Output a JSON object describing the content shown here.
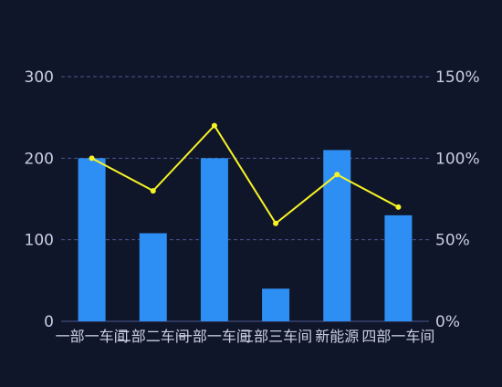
{
  "colors": {
    "background": "#101629",
    "bar": "#2d8ff3",
    "line": "#f7f425",
    "grid": "#4a5590",
    "text": "#c9cde6"
  },
  "chart_data": {
    "type": "bar",
    "categories": [
      "一部一车间",
      "二部二车间",
      "一部一车间",
      "三部三车间",
      "新能源",
      "四部一车间"
    ],
    "series": [
      {
        "type": "bar",
        "axis": "left",
        "values": [
          200,
          108,
          200,
          40,
          210,
          130
        ]
      },
      {
        "type": "line",
        "axis": "right",
        "values": [
          100,
          80,
          120,
          60,
          90,
          70
        ]
      }
    ],
    "y_left": {
      "min": 0,
      "max": 300,
      "ticks": [
        0,
        100,
        200,
        300
      ],
      "tick_labels": [
        "0",
        "100",
        "200",
        "300"
      ]
    },
    "y_right": {
      "min": 0,
      "max": 150,
      "ticks": [
        0,
        50,
        100,
        150
      ],
      "tick_labels": [
        "0%",
        "50%",
        "100%",
        "150%"
      ]
    },
    "grid": true,
    "legend": "none"
  }
}
